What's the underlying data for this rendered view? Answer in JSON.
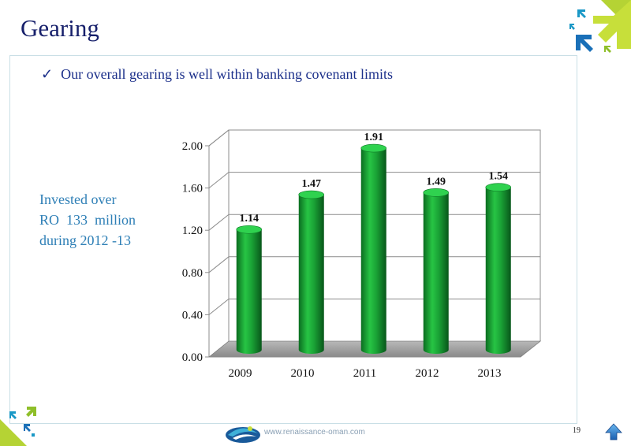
{
  "slide": {
    "title": "Gearing",
    "bullet": "Our overall gearing is well within banking covenant limits",
    "side_note": [
      "Invested over",
      "RO  133  million",
      "during 2012 -13"
    ],
    "footer_url": "www.renaissance-oman.com",
    "page_number": "19"
  },
  "icons": {
    "bullet": "checkmark-icon",
    "home": "up-arrow-home-icon",
    "logo": "company-logo-icon",
    "deco": "arrows-decoration-icon"
  },
  "colors": {
    "title": "#17206b",
    "bullet_text": "#1b2f8a",
    "side_note": "#2e7fb6",
    "bar": "#1aa336",
    "floor": "#9a9a9a",
    "deco_green": "#b5d334",
    "deco_blue": "#1a70b8"
  },
  "chart_data": {
    "type": "bar",
    "categories": [
      "2009",
      "2010",
      "2011",
      "2012",
      "2013"
    ],
    "values": [
      1.14,
      1.47,
      1.91,
      1.49,
      1.54
    ],
    "data_labels": [
      "1.14",
      "1.47",
      "1.91",
      "1.49",
      "1.54"
    ],
    "y_ticks": [
      "0.00",
      "0.40",
      "0.80",
      "1.20",
      "1.60",
      "2.00"
    ],
    "ylim": [
      0,
      2.0
    ],
    "grid": true,
    "style": "3d-cylinder",
    "legend": "none"
  }
}
